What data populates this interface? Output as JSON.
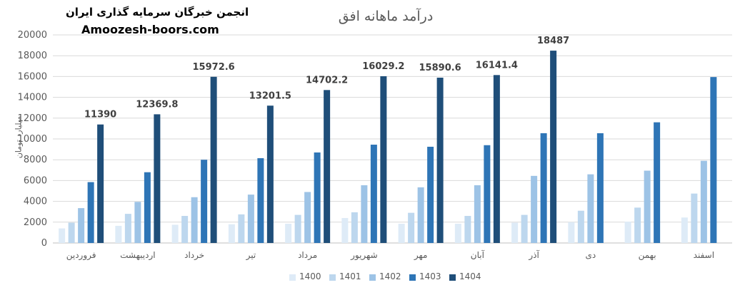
{
  "branding": {
    "org_name": "انجمن خبرگان سرمایه گذاری ایران",
    "website": "Amoozesh-boors.com"
  },
  "colors": {
    "1400": "#deebf7",
    "1401": "#bdd7ee",
    "1402": "#9dc3e6",
    "1403": "#2e75b6",
    "1404": "#1f4e79",
    "axis_text": "#595959",
    "gridline": "#d9d9d9"
  },
  "chart_data": {
    "type": "bar",
    "title": "درآمد ماهانه افق",
    "xlabel": "",
    "ylabel": "میلیارد تومان",
    "ylim": [
      0,
      20000
    ],
    "yticks": [
      0,
      2000,
      4000,
      6000,
      8000,
      10000,
      12000,
      14000,
      16000,
      18000,
      20000
    ],
    "grid": true,
    "legend_position": "bottom",
    "categories": [
      "فروردین",
      "اردیبهشت",
      "خرداد",
      "تیر",
      "مرداد",
      "شهریور",
      "مهر",
      "آبان",
      "آذر",
      "دی",
      "بهمن",
      "اسفند"
    ],
    "series": [
      {
        "name": "1400",
        "values": [
          1400,
          1650,
          1750,
          1800,
          1850,
          2400,
          1850,
          1850,
          1950,
          2000,
          2050,
          2450
        ]
      },
      {
        "name": "1401",
        "values": [
          1950,
          2800,
          2600,
          2750,
          2700,
          2950,
          2900,
          2600,
          2700,
          3100,
          3400,
          4750
        ]
      },
      {
        "name": "1402",
        "values": [
          3350,
          3950,
          4400,
          4650,
          4900,
          5550,
          5350,
          5550,
          6450,
          6600,
          6950,
          7900
        ]
      },
      {
        "name": "1403",
        "values": [
          5850,
          6800,
          8000,
          8150,
          8700,
          9450,
          9250,
          9400,
          10550,
          10550,
          11600,
          15950
        ]
      },
      {
        "name": "1404",
        "values": [
          11390,
          12369.8,
          15972.6,
          13201.5,
          14702.2,
          16029.2,
          15890.6,
          16141.4,
          18487,
          null,
          null,
          null
        ]
      }
    ],
    "data_labels": {
      "series": "1404",
      "values": [
        "11390",
        "12369.8",
        "15972.6",
        "13201.5",
        "14702.2",
        "16029.2",
        "15890.6",
        "16141.4",
        "18487"
      ]
    }
  }
}
